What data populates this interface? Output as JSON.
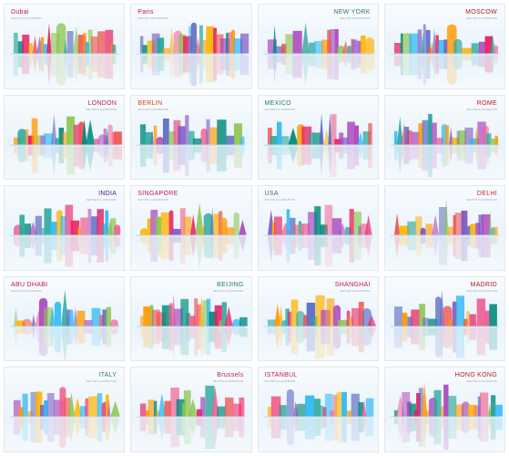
{
  "cards": [
    {
      "title": "Dubai",
      "subtitle": "VECTOR ILLUSTRATION",
      "color": "#c2185b",
      "align": "left"
    },
    {
      "title": "Paris",
      "subtitle": "VECTOR ILLUSTRATION",
      "color": "#c2185b",
      "align": "left"
    },
    {
      "title": "NEW YORK",
      "subtitle": "VECTOR ILLUSTRATION",
      "color": "#2e7d5b",
      "align": "right"
    },
    {
      "title": "MOSCOW",
      "subtitle": "VECTOR ILLUSTRATION",
      "color": "#b71c1c",
      "align": "right"
    },
    {
      "title": "LONDON",
      "subtitle": "VECTOR ILLUSTRATION",
      "color": "#c2185b",
      "align": "right"
    },
    {
      "title": "BERLIN",
      "subtitle": "VECTOR ILLUSTRATION",
      "color": "#d84315",
      "align": "left"
    },
    {
      "title": "MEXICO",
      "subtitle": "VECTOR ILLUSTRATION",
      "color": "#2e7d5b",
      "align": "left"
    },
    {
      "title": "ROME",
      "subtitle": "VECTOR ILLUSTRATION",
      "color": "#b71c1c",
      "align": "right"
    },
    {
      "title": "INDIA",
      "subtitle": "VECTOR ILLUSTRATION",
      "color": "#4a148c",
      "align": "right"
    },
    {
      "title": "SINGAPORE",
      "subtitle": "VECTOR ILLUSTRATION",
      "color": "#c2185b",
      "align": "left"
    },
    {
      "title": "USA",
      "subtitle": "VECTOR ILLUSTRATION",
      "color": "#2e7d5b",
      "align": "left"
    },
    {
      "title": "DELHI",
      "subtitle": "VECTOR ILLUSTRATION",
      "color": "#c62828",
      "align": "right"
    },
    {
      "title": "ABU DHABI",
      "subtitle": "VECTOR ILLUSTRATION",
      "color": "#c2185b",
      "align": "left"
    },
    {
      "title": "BEIJING",
      "subtitle": "VECTOR ILLUSTRATION",
      "color": "#2e7d5b",
      "align": "right"
    },
    {
      "title": "SHANGHAI",
      "subtitle": "VECTOR ILLUSTRATION",
      "color": "#c2185b",
      "align": "right"
    },
    {
      "title": "MADRID",
      "subtitle": "VECTOR ILLUSTRATION",
      "color": "#b71c1c",
      "align": "right"
    },
    {
      "title": "ITALY",
      "subtitle": "VECTOR ILLUSTRATION",
      "color": "#2e7d5b",
      "align": "right"
    },
    {
      "title": "Brussels",
      "subtitle": "VECTOR ILLUSTRATION",
      "color": "#c2185b",
      "align": "right"
    },
    {
      "title": "ISTANBUL",
      "subtitle": "VECTOR ILLUSTRATION",
      "color": "#c2185b",
      "align": "left"
    },
    {
      "title": "HONG KONG",
      "subtitle": "VECTOR ILLUSTRATION",
      "color": "#b71c1c",
      "align": "right"
    }
  ],
  "palette": [
    "#e91e63",
    "#f06292",
    "#ff9800",
    "#ffb300",
    "#26a69a",
    "#00897b",
    "#7e57c2",
    "#5c6bc0",
    "#ef5350",
    "#ab47bc",
    "#29b6f6",
    "#8bc34a"
  ]
}
